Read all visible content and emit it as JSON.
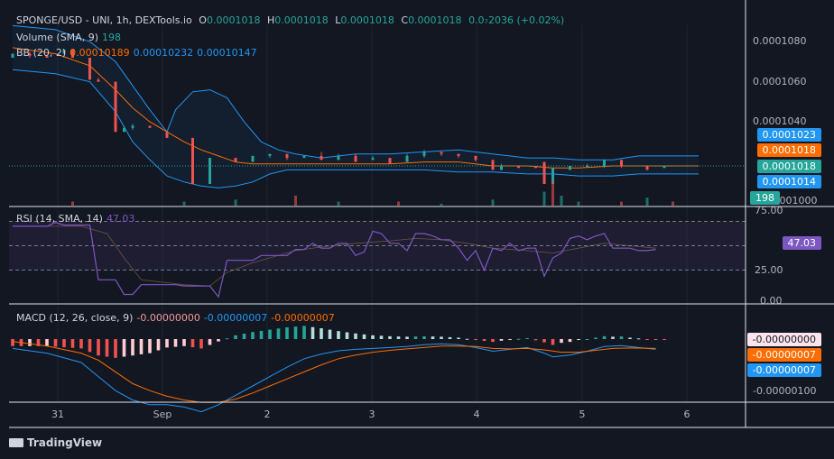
{
  "header": {
    "symbol": "SPONGE/USD - UNI, 1h, DEXTools.io",
    "o_label": "O",
    "o_value": "0.0001018",
    "h_label": "H",
    "h_value": "0.0001018",
    "l_label": "L",
    "l_value": "0.0001018",
    "c_label": "C",
    "c_value": "0.0001018",
    "change": "0.0₇2036 (+0.02%)"
  },
  "volume_legend": {
    "label": "Volume (SMA, 9)",
    "value": "198"
  },
  "bb_legend": {
    "label": "BB (20, 2)",
    "basis": "0.00010189",
    "upper": "0.00010232",
    "lower": "0.00010147"
  },
  "rsi_legend": {
    "label": "RSI (14, SMA, 14)",
    "value": "47.03"
  },
  "macd_legend": {
    "label": "MACD (12, 26, close, 9)",
    "hist": "-0.00000000",
    "macd": "-0.00000007",
    "signal": "-0.00000007"
  },
  "price_axis": {
    "ticks": [
      "0.0001080",
      "0.0001060",
      "0.0001040",
      "0.0001000"
    ],
    "tags": {
      "bb_upper": "0.0001023",
      "bb_basis": "0.0001018",
      "last": "0.0001018",
      "bb_lower": "0.0001014",
      "volume": "198"
    }
  },
  "rsi_axis": {
    "ticks": [
      "75.00",
      "25.00",
      "0.00"
    ],
    "value_tag": "47.03"
  },
  "macd_axis": {
    "ticks": [
      "-0.00000100"
    ],
    "tags": {
      "hist": "-0.00000000",
      "signal": "-0.00000007",
      "macd": "-0.00000007"
    }
  },
  "time_axis": {
    "labels": [
      "31",
      "Sep",
      "2",
      "3",
      "4",
      "5",
      "6"
    ]
  },
  "branding": {
    "name": "TradingView"
  },
  "colors": {
    "up": "#26a69a",
    "down": "#ef5350",
    "bb": "#2196f3",
    "basis": "#ff6d00",
    "rsi": "#7e57c2",
    "bg": "#131722"
  },
  "chart_data": {
    "type": "candlestick",
    "title": "SPONGE/USD - UNI, 1h, DEXTools.io",
    "price_range": [
      0.0001,
      0.000109
    ],
    "bb_upper": [
      [
        0,
        1.0088
      ],
      [
        5,
        1.0086
      ],
      [
        9,
        1.008
      ],
      [
        12,
        1.007
      ],
      [
        14,
        1.0058
      ],
      [
        16,
        1.0046
      ],
      [
        18,
        1.0035
      ],
      [
        19,
        1.0046
      ],
      [
        21,
        1.0055
      ],
      [
        23,
        1.0056
      ],
      [
        25,
        1.0052
      ],
      [
        27,
        1.004
      ],
      [
        29,
        1.003
      ],
      [
        31,
        1.0026
      ],
      [
        33,
        1.0024
      ],
      [
        36,
        1.0022
      ],
      [
        40,
        1.0024
      ],
      [
        44,
        1.0024
      ],
      [
        48,
        1.0025
      ],
      [
        52,
        1.0026
      ],
      [
        56,
        1.0024
      ],
      [
        60,
        1.0022
      ],
      [
        63,
        1.0022
      ],
      [
        66,
        1.0021
      ],
      [
        70,
        1.0021
      ],
      [
        73,
        1.0023
      ],
      [
        76,
        1.0023
      ],
      [
        80,
        1.0023
      ]
    ],
    "bb_lower": [
      [
        0,
        1.0066
      ],
      [
        5,
        1.0064
      ],
      [
        9,
        1.006
      ],
      [
        12,
        1.0045
      ],
      [
        14,
        1.003
      ],
      [
        16,
        1.0021
      ],
      [
        18,
        1.0013
      ],
      [
        20,
        1.001
      ],
      [
        22,
        1.0008
      ],
      [
        24,
        1.0007
      ],
      [
        26,
        1.0008
      ],
      [
        28,
        1.001
      ],
      [
        30,
        1.0014
      ],
      [
        32,
        1.0016
      ],
      [
        36,
        1.0016
      ],
      [
        40,
        1.0016
      ],
      [
        44,
        1.0016
      ],
      [
        48,
        1.0016
      ],
      [
        52,
        1.0015
      ],
      [
        56,
        1.0015
      ],
      [
        60,
        1.0014
      ],
      [
        63,
        1.0014
      ],
      [
        66,
        1.0013
      ],
      [
        70,
        1.0013
      ],
      [
        73,
        1.0014
      ],
      [
        76,
        1.0014
      ],
      [
        80,
        1.0014
      ]
    ],
    "bb_basis": [
      [
        0,
        1.0077
      ],
      [
        5,
        1.0074
      ],
      [
        9,
        1.0068
      ],
      [
        12,
        1.0056
      ],
      [
        14,
        1.0047
      ],
      [
        16,
        1.004
      ],
      [
        18,
        1.0035
      ],
      [
        20,
        1.003
      ],
      [
        22,
        1.0026
      ],
      [
        24,
        1.0023
      ],
      [
        26,
        1.002
      ],
      [
        28,
        1.0019
      ],
      [
        30,
        1.0019
      ],
      [
        34,
        1.0019
      ],
      [
        40,
        1.0019
      ],
      [
        44,
        1.0019
      ],
      [
        48,
        1.002
      ],
      [
        52,
        1.002
      ],
      [
        56,
        1.0018
      ],
      [
        60,
        1.0018
      ],
      [
        63,
        1.0017
      ],
      [
        66,
        1.0017
      ],
      [
        70,
        1.0018
      ],
      [
        73,
        1.0018
      ],
      [
        76,
        1.0018
      ],
      [
        80,
        1.0018
      ]
    ],
    "candles": [
      [
        0,
        1.0072,
        1.0074,
        1.0072,
        1.0074
      ],
      [
        2,
        1.0074,
        1.0075,
        1.0072,
        1.0073
      ],
      [
        4,
        1.0073,
        1.0073,
        1.0072,
        1.0072
      ],
      [
        6,
        1.0074,
        1.0076,
        1.0074,
        1.0076
      ],
      [
        7,
        1.0076,
        1.0076,
        1.0072,
        1.0072
      ],
      [
        9,
        1.0072,
        1.0072,
        1.0061,
        1.0061
      ],
      [
        10,
        1.0061,
        1.0062,
        1.006,
        1.006
      ],
      [
        12,
        1.006,
        1.006,
        1.0035,
        1.0035
      ],
      [
        13,
        1.0035,
        1.0038,
        1.0035,
        1.0037
      ],
      [
        14,
        1.0037,
        1.0039,
        1.0036,
        1.0038
      ],
      [
        16,
        1.0038,
        1.0038,
        1.0037,
        1.0037
      ],
      [
        18,
        1.0035,
        1.0035,
        1.0032,
        1.0032
      ],
      [
        21,
        1.0032,
        1.0032,
        1.0009,
        1.0009
      ],
      [
        23,
        1.0009,
        1.0022,
        1.0009,
        1.0022
      ],
      [
        26,
        1.0022,
        1.0022,
        1.002,
        1.002
      ],
      [
        28,
        1.002,
        1.0023,
        1.002,
        1.0023
      ],
      [
        30,
        1.0023,
        1.0024,
        1.0022,
        1.0024
      ],
      [
        32,
        1.0024,
        1.0024,
        1.0021,
        1.0022
      ],
      [
        34,
        1.0022,
        1.0023,
        1.0022,
        1.0023
      ],
      [
        36,
        1.0023,
        1.0025,
        1.0021,
        1.0021
      ],
      [
        38,
        1.0021,
        1.0024,
        1.0021,
        1.0023
      ],
      [
        40,
        1.0023,
        1.0024,
        1.002,
        1.002
      ],
      [
        42,
        1.0021,
        1.0023,
        1.0021,
        1.0022
      ],
      [
        44,
        1.0022,
        1.0022,
        1.0019,
        1.0019
      ],
      [
        46,
        1.002,
        1.0024,
        1.002,
        1.0023
      ],
      [
        48,
        1.0023,
        1.0026,
        1.0022,
        1.0025
      ],
      [
        50,
        1.0025,
        1.0025,
        1.0023,
        1.0024
      ],
      [
        52,
        1.0024,
        1.0024,
        1.0022,
        1.0023
      ],
      [
        54,
        1.0023,
        1.0023,
        1.002,
        1.0021
      ],
      [
        56,
        1.0021,
        1.0021,
        1.0016,
        1.0016
      ],
      [
        57,
        1.0016,
        1.0019,
        1.0016,
        1.0018
      ],
      [
        59,
        1.0018,
        1.0018,
        1.0017,
        1.0017
      ],
      [
        61,
        1.0018,
        1.0018,
        1.0017,
        1.0017
      ],
      [
        62,
        1.002,
        1.002,
        1.0009,
        1.0009
      ],
      [
        63,
        1.0009,
        1.0017,
        1.0009,
        1.0017
      ],
      [
        65,
        1.0016,
        1.0018,
        1.0016,
        1.0018
      ],
      [
        67,
        1.0018,
        1.0019,
        1.0017,
        1.0018
      ],
      [
        69,
        1.0018,
        1.0021,
        1.0017,
        1.0021
      ],
      [
        71,
        1.0021,
        1.0021,
        1.0017,
        1.0018
      ],
      [
        74,
        1.0018,
        1.0018,
        1.0016,
        1.0016
      ],
      [
        76,
        1.0017,
        1.0018,
        1.0017,
        1.0018
      ]
    ],
    "volume": [
      [
        7,
        2
      ],
      [
        20,
        2
      ],
      [
        26,
        3
      ],
      [
        33,
        5
      ],
      [
        38,
        2
      ],
      [
        45,
        2
      ],
      [
        50,
        1
      ],
      [
        56,
        3
      ],
      [
        62,
        7
      ],
      [
        63,
        12
      ],
      [
        64,
        5
      ],
      [
        66,
        2
      ],
      [
        71,
        2
      ],
      [
        74,
        4
      ],
      [
        77,
        2
      ]
    ],
    "rsi_range": [
      0,
      80
    ],
    "rsi": [
      [
        0,
        66
      ],
      [
        4,
        66
      ],
      [
        5,
        69
      ],
      [
        6,
        67
      ],
      [
        9,
        67
      ],
      [
        10,
        22
      ],
      [
        11,
        22
      ],
      [
        12,
        22
      ],
      [
        13,
        10
      ],
      [
        14,
        10
      ],
      [
        15,
        18
      ],
      [
        19,
        18
      ],
      [
        20,
        17
      ],
      [
        23,
        17
      ],
      [
        24,
        8
      ],
      [
        25,
        38
      ],
      [
        28,
        38
      ],
      [
        29,
        42
      ],
      [
        32,
        42
      ],
      [
        33,
        47
      ],
      [
        34,
        47
      ],
      [
        35,
        52
      ],
      [
        36,
        48
      ],
      [
        37,
        48
      ],
      [
        38,
        52
      ],
      [
        39,
        52
      ],
      [
        40,
        42
      ],
      [
        41,
        45
      ],
      [
        42,
        62
      ],
      [
        43,
        60
      ],
      [
        44,
        52
      ],
      [
        45,
        52
      ],
      [
        46,
        46
      ],
      [
        47,
        60
      ],
      [
        48,
        60
      ],
      [
        49,
        58
      ],
      [
        50,
        55
      ],
      [
        51,
        55
      ],
      [
        52,
        48
      ],
      [
        53,
        38
      ],
      [
        54,
        46
      ],
      [
        55,
        30
      ],
      [
        56,
        48
      ],
      [
        57,
        46
      ],
      [
        58,
        52
      ],
      [
        59,
        46
      ],
      [
        60,
        48
      ],
      [
        61,
        48
      ],
      [
        62,
        25
      ],
      [
        63,
        40
      ],
      [
        64,
        44
      ],
      [
        65,
        56
      ],
      [
        66,
        58
      ],
      [
        67,
        55
      ],
      [
        68,
        58
      ],
      [
        69,
        60
      ],
      [
        70,
        48
      ],
      [
        71,
        48
      ],
      [
        72,
        48
      ],
      [
        73,
        46
      ],
      [
        74,
        46
      ],
      [
        75,
        47
      ]
    ],
    "rsi_ma": [
      [
        0,
        66
      ],
      [
        8,
        66
      ],
      [
        11,
        60
      ],
      [
        13,
        40
      ],
      [
        15,
        22
      ],
      [
        20,
        18
      ],
      [
        23,
        17
      ],
      [
        25,
        28
      ],
      [
        28,
        36
      ],
      [
        31,
        42
      ],
      [
        33,
        46
      ],
      [
        36,
        49
      ],
      [
        40,
        52
      ],
      [
        44,
        54
      ],
      [
        47,
        56
      ],
      [
        50,
        55
      ],
      [
        53,
        52
      ],
      [
        56,
        48
      ],
      [
        60,
        46
      ],
      [
        63,
        44
      ],
      [
        66,
        48
      ],
      [
        69,
        52
      ],
      [
        72,
        50
      ],
      [
        75,
        48
      ]
    ],
    "macd_range": [
      -1.3e-06,
      2e-07
    ],
    "macd": [
      [
        0,
        -0.2
      ],
      [
        4,
        -0.3
      ],
      [
        8,
        -0.5
      ],
      [
        10,
        -0.8
      ],
      [
        12,
        -1.1
      ],
      [
        14,
        -1.3
      ],
      [
        16,
        -1.4
      ],
      [
        18,
        -1.4
      ],
      [
        20,
        -1.45
      ],
      [
        22,
        -1.55
      ],
      [
        24,
        -1.4
      ],
      [
        26,
        -1.2
      ],
      [
        28,
        -1.0
      ],
      [
        30,
        -0.8
      ],
      [
        32,
        -0.6
      ],
      [
        34,
        -0.42
      ],
      [
        36,
        -0.32
      ],
      [
        38,
        -0.25
      ],
      [
        40,
        -0.22
      ],
      [
        42,
        -0.2
      ],
      [
        44,
        -0.18
      ],
      [
        46,
        -0.16
      ],
      [
        48,
        -0.12
      ],
      [
        50,
        -0.1
      ],
      [
        52,
        -0.12
      ],
      [
        54,
        -0.18
      ],
      [
        56,
        -0.26
      ],
      [
        58,
        -0.22
      ],
      [
        60,
        -0.18
      ],
      [
        62,
        -0.3
      ],
      [
        63,
        -0.38
      ],
      [
        65,
        -0.34
      ],
      [
        67,
        -0.26
      ],
      [
        69,
        -0.16
      ],
      [
        71,
        -0.14
      ],
      [
        73,
        -0.18
      ],
      [
        75,
        -0.22
      ]
    ],
    "signal": [
      [
        0,
        -0.05
      ],
      [
        4,
        -0.15
      ],
      [
        8,
        -0.3
      ],
      [
        10,
        -0.45
      ],
      [
        12,
        -0.7
      ],
      [
        14,
        -0.95
      ],
      [
        16,
        -1.1
      ],
      [
        18,
        -1.22
      ],
      [
        20,
        -1.3
      ],
      [
        22,
        -1.35
      ],
      [
        24,
        -1.35
      ],
      [
        26,
        -1.28
      ],
      [
        28,
        -1.15
      ],
      [
        30,
        -1.0
      ],
      [
        32,
        -0.85
      ],
      [
        34,
        -0.7
      ],
      [
        36,
        -0.55
      ],
      [
        38,
        -0.42
      ],
      [
        40,
        -0.34
      ],
      [
        42,
        -0.28
      ],
      [
        44,
        -0.24
      ],
      [
        46,
        -0.21
      ],
      [
        48,
        -0.18
      ],
      [
        50,
        -0.15
      ],
      [
        52,
        -0.15
      ],
      [
        54,
        -0.16
      ],
      [
        56,
        -0.2
      ],
      [
        58,
        -0.21
      ],
      [
        60,
        -0.2
      ],
      [
        62,
        -0.23
      ],
      [
        64,
        -0.28
      ],
      [
        66,
        -0.28
      ],
      [
        68,
        -0.24
      ],
      [
        70,
        -0.2
      ],
      [
        72,
        -0.19
      ],
      [
        75,
        -0.2
      ]
    ]
  }
}
